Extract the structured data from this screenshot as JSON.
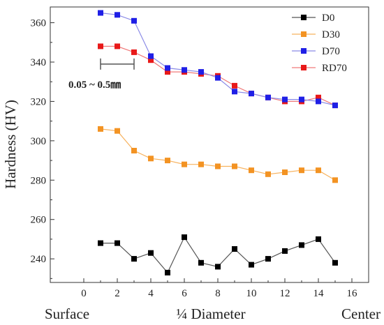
{
  "chart_data": {
    "type": "line",
    "ylabel": "Hardness (HV)",
    "xlim": [
      -2,
      17
    ],
    "ylim": [
      228,
      368
    ],
    "xticks": [
      0,
      2,
      4,
      6,
      8,
      10,
      12,
      14,
      16
    ],
    "yticks": [
      240,
      260,
      280,
      300,
      320,
      340,
      360
    ],
    "x": [
      1,
      2,
      3,
      4,
      5,
      6,
      7,
      8,
      9,
      10,
      11,
      12,
      13,
      14,
      15
    ],
    "series": [
      {
        "name": "D0",
        "color": "#000000",
        "line_color": "#555555",
        "values": [
          248,
          248,
          240,
          243,
          233,
          251,
          238,
          236,
          245,
          237,
          240,
          244,
          247,
          250,
          238
        ]
      },
      {
        "name": "D30",
        "color": "#f39323",
        "line_color": "#f7b25e",
        "values": [
          306,
          305,
          295,
          291,
          290,
          288,
          288,
          287,
          287,
          285,
          283,
          284,
          285,
          285,
          280
        ]
      },
      {
        "name": "D70",
        "color": "#1f1fe6",
        "line_color": "#8a8ae6",
        "values": [
          365,
          364,
          361,
          343,
          337,
          336,
          335,
          332,
          325,
          324,
          322,
          321,
          321,
          320,
          318
        ]
      },
      {
        "name": "RD70",
        "color": "#e81919",
        "line_color": "#f07a7a",
        "values": [
          348,
          348,
          345,
          341,
          335,
          335,
          334,
          333,
          328,
          324,
          322,
          320,
          320,
          322,
          318
        ]
      }
    ],
    "x_category_labels": [
      "Surface",
      "¼ Diameter",
      "Center"
    ],
    "annotation": {
      "text": "0.05 ~ 0.5㎜",
      "bracket_x": [
        1,
        3
      ],
      "y": 339
    },
    "legend": "top-right",
    "grid": false
  }
}
